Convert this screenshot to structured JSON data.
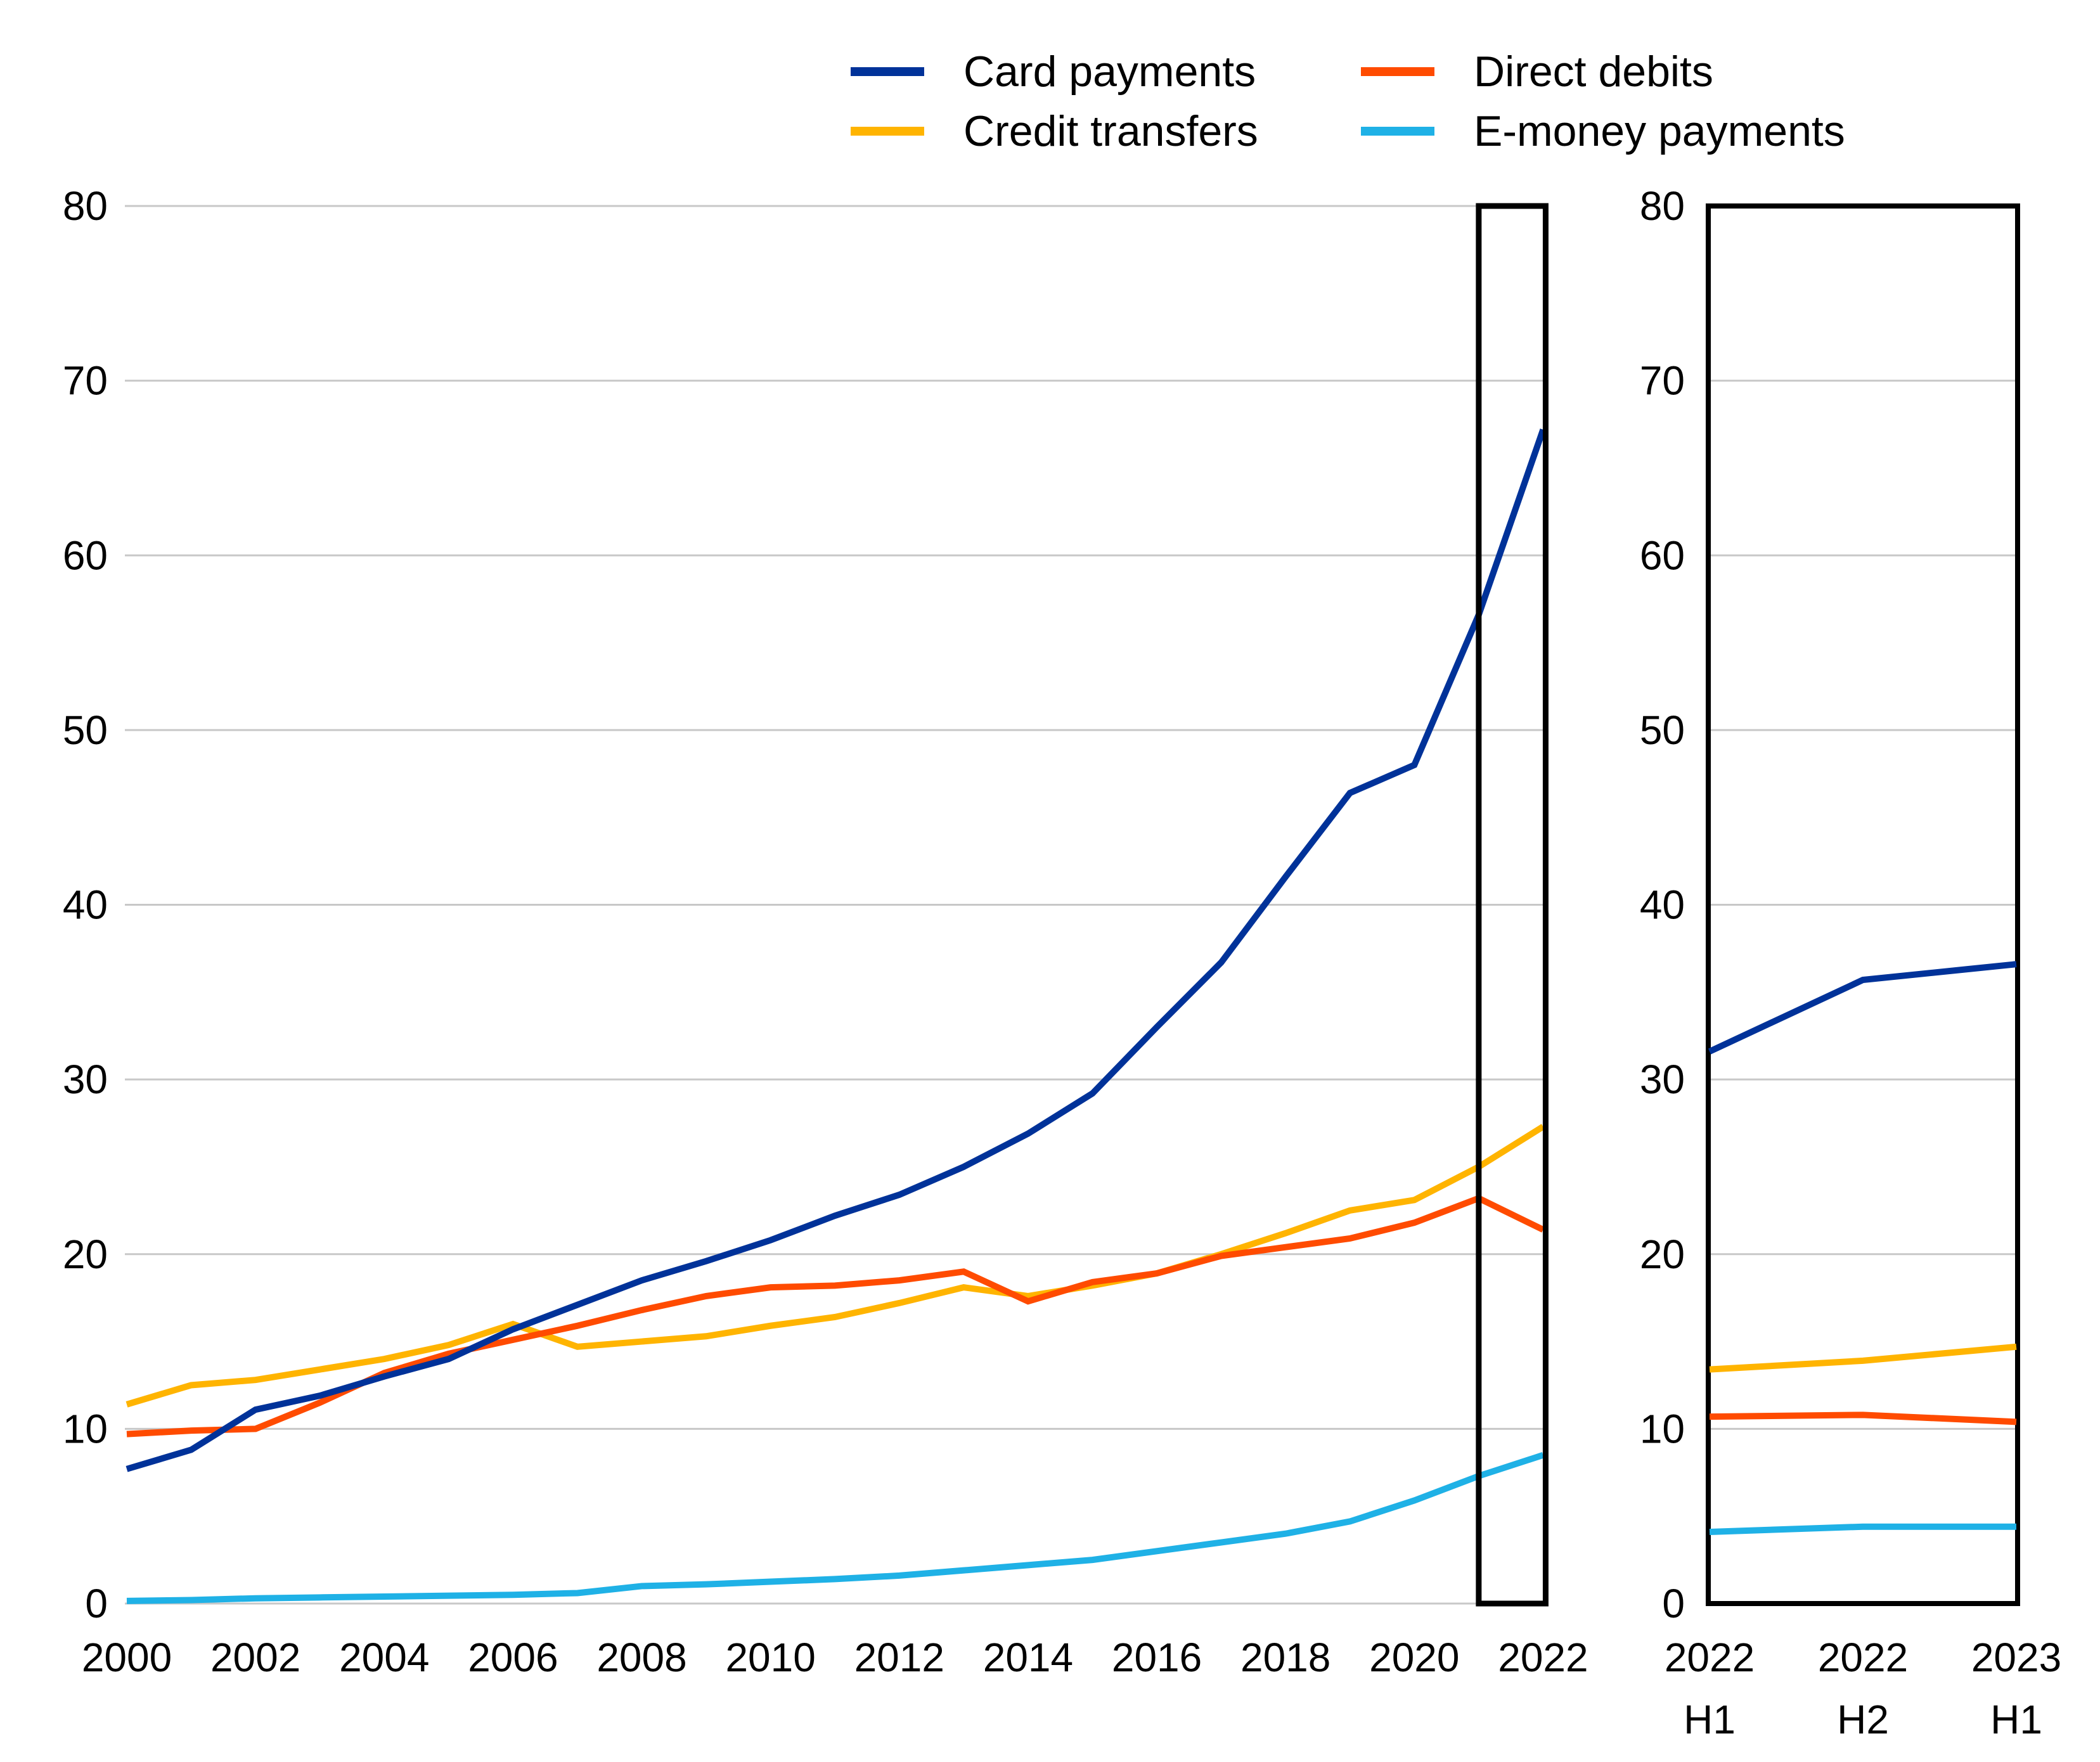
{
  "chart_data": {
    "type": "line",
    "title": "",
    "grid": "horizontal-only",
    "legend_position": "top-center, two columns",
    "colors": {
      "card": "#003299",
      "credit": "#ffb400",
      "direct": "#ff4b00",
      "emoney": "#1fb1e6",
      "gridline": "#c8c8c8",
      "frame": "#000000"
    },
    "legend": [
      {
        "label": "Card payments",
        "key": "card"
      },
      {
        "label": "Direct debits",
        "key": "direct"
      },
      {
        "label": "Credit transfers",
        "key": "credit"
      },
      {
        "label": "E-money payments",
        "key": "emoney"
      }
    ],
    "main_panel": {
      "ylim": [
        0,
        80
      ],
      "y_ticks": [
        0,
        10,
        20,
        30,
        40,
        50,
        60,
        70,
        80
      ],
      "years": [
        2000,
        2001,
        2002,
        2003,
        2004,
        2005,
        2006,
        2007,
        2008,
        2009,
        2010,
        2011,
        2012,
        2013,
        2014,
        2015,
        2016,
        2017,
        2018,
        2019,
        2020,
        2021,
        2022
      ],
      "x_tick_years": [
        2000,
        2002,
        2004,
        2006,
        2008,
        2010,
        2012,
        2014,
        2016,
        2018,
        2020,
        2022
      ],
      "highlight_box": {
        "from_year": 2021,
        "to_year": 2022
      },
      "series": [
        {
          "name": "Credit transfers",
          "key": "credit",
          "values": [
            11.4,
            12.5,
            12.8,
            13.4,
            14.0,
            14.8,
            16.0,
            14.7,
            15.0,
            15.3,
            15.9,
            16.4,
            17.2,
            18.1,
            17.6,
            18.2,
            18.9,
            20.0,
            21.2,
            22.5,
            23.1,
            25.0,
            27.3
          ]
        },
        {
          "name": "Direct debits",
          "key": "direct",
          "values": [
            9.7,
            9.9,
            10.0,
            11.5,
            13.2,
            14.3,
            15.1,
            15.9,
            16.8,
            17.6,
            18.1,
            18.2,
            18.5,
            19.0,
            17.3,
            18.4,
            18.9,
            19.9,
            20.4,
            20.9,
            21.8,
            23.2,
            21.4
          ]
        },
        {
          "name": "Card payments",
          "key": "card",
          "values": [
            7.7,
            8.8,
            11.1,
            11.9,
            13.0,
            14.0,
            15.7,
            17.1,
            18.5,
            19.6,
            20.8,
            22.2,
            23.4,
            25.0,
            26.9,
            29.2,
            33.0,
            36.7,
            41.6,
            46.4,
            48.0,
            56.6,
            67.2
          ]
        },
        {
          "name": "E-money payments",
          "key": "emoney",
          "values": [
            0.15,
            0.2,
            0.3,
            0.35,
            0.4,
            0.45,
            0.5,
            0.6,
            1.0,
            1.1,
            1.25,
            1.4,
            1.6,
            1.9,
            2.2,
            2.5,
            3.0,
            3.5,
            4.0,
            4.7,
            5.9,
            7.3,
            8.5
          ]
        }
      ]
    },
    "right_panel": {
      "ylim": [
        0,
        80
      ],
      "y_ticks": [
        0,
        10,
        20,
        30,
        40,
        50,
        60,
        70,
        80
      ],
      "x_tick_labels": [
        [
          "2022",
          "H1"
        ],
        [
          "2022",
          "H2"
        ],
        [
          "2023",
          "H1"
        ]
      ],
      "series": [
        {
          "name": "Credit transfers",
          "key": "credit",
          "values": [
            13.4,
            13.9,
            14.7
          ]
        },
        {
          "name": "Direct debits",
          "key": "direct",
          "values": [
            10.7,
            10.8,
            10.4
          ]
        },
        {
          "name": "Card payments",
          "key": "card",
          "values": [
            31.6,
            35.7,
            36.6
          ]
        },
        {
          "name": "E-money payments",
          "key": "emoney",
          "values": [
            4.1,
            4.4,
            4.4
          ]
        }
      ]
    }
  }
}
